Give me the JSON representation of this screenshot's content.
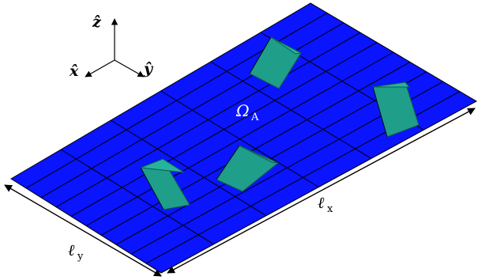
{
  "diagram": {
    "plate_color": "#0a14ff",
    "grid_line_color": "#000000",
    "fin_color": "#1f9e8a",
    "plate_grid": {
      "cols": 10,
      "rows": 6
    },
    "fin_count": 4,
    "axes": {
      "z_label": "ẑ",
      "x_label": "x̂",
      "y_label": "ŷ"
    },
    "region_label": {
      "symbol": "Ω",
      "subscript": "A"
    },
    "length_x": {
      "symbol": "ℓ",
      "subscript": "x"
    },
    "length_y": {
      "symbol": "ℓ",
      "subscript": "y"
    }
  }
}
